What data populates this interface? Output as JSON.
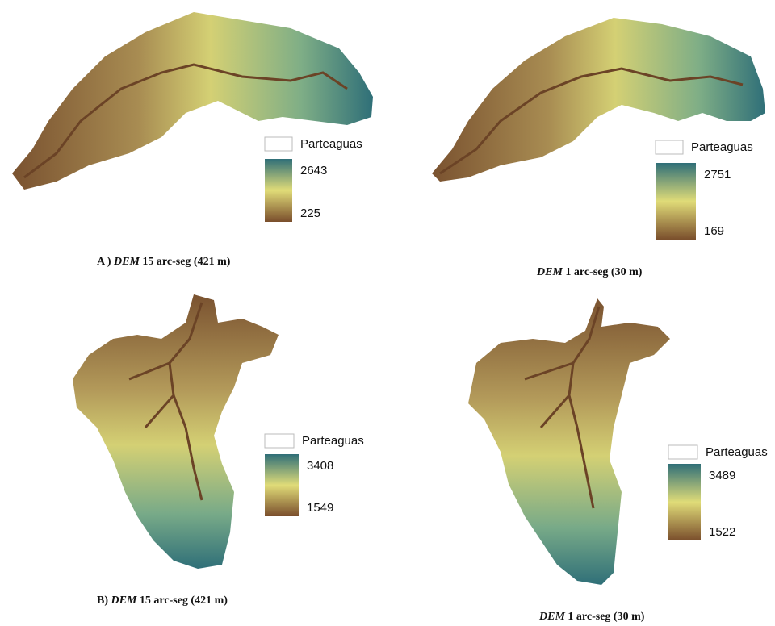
{
  "panels": [
    {
      "legend_label": "Parteaguas",
      "max": 2643,
      "min": 225,
      "caption": {
        "prefix": "A )",
        "italic": "DEM",
        "rest": "15 arc-seg (421 m)"
      }
    },
    {
      "legend_label": "Parteaguas",
      "max": 2751,
      "min": 169,
      "caption": {
        "italic": "DEM",
        "rest": "1 arc-seg (30 m)"
      }
    },
    {
      "legend_label": "Parteaguas",
      "max": 3408,
      "min": 1549,
      "caption": {
        "prefix": "B)",
        "italic": "DEM",
        "rest": "15 arc-seg (421 m)"
      }
    },
    {
      "legend_label": "Parteaguas",
      "max": 3489,
      "min": 1522,
      "caption": {
        "italic": "DEM",
        "rest": "1 arc-seg (30 m)"
      }
    }
  ]
}
